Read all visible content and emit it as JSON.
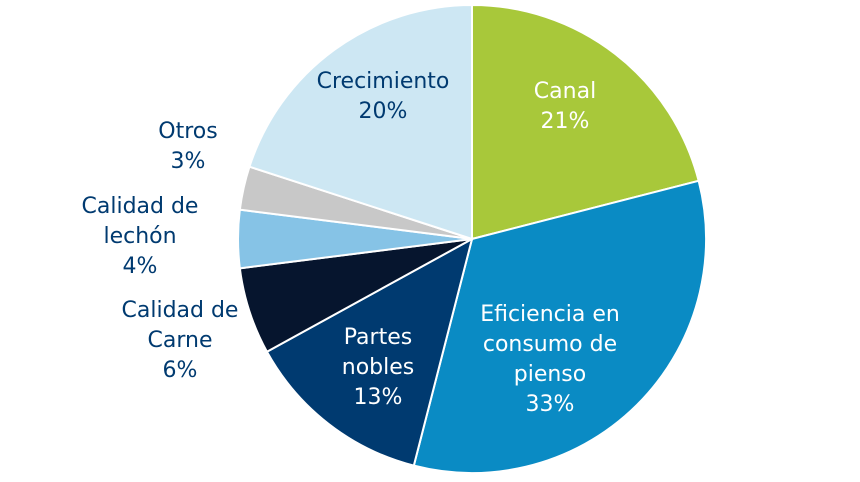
{
  "chart_data": {
    "type": "pie",
    "title": "",
    "slices": [
      {
        "label_lines": [
          "Canal",
          "21%"
        ],
        "value": 21,
        "color": "#a8c83a",
        "text_color": "#ffffff"
      },
      {
        "label_lines": [
          "Eficiencia en",
          "consumo de",
          "pienso",
          "33%"
        ],
        "value": 33,
        "color": "#0a8bc4",
        "text_color": "#ffffff"
      },
      {
        "label_lines": [
          "Partes",
          "nobles",
          "13%"
        ],
        "value": 13,
        "color": "#003a70",
        "text_color": "#ffffff"
      },
      {
        "label_lines": [
          "Calidad de",
          "Carne",
          "6%"
        ],
        "value": 6,
        "color": "#06152e",
        "text_color": "#003a70"
      },
      {
        "label_lines": [
          "Calidad de",
          "lechón",
          "4%"
        ],
        "value": 4,
        "color": "#86c3e6",
        "text_color": "#003a70"
      },
      {
        "label_lines": [
          "Otros",
          "3%"
        ],
        "value": 3,
        "color": "#c8c8c8",
        "text_color": "#003a70"
      },
      {
        "label_lines": [
          "Crecimiento",
          "20%"
        ],
        "value": 20,
        "color": "#cde7f3",
        "text_color": "#003a70"
      }
    ]
  }
}
